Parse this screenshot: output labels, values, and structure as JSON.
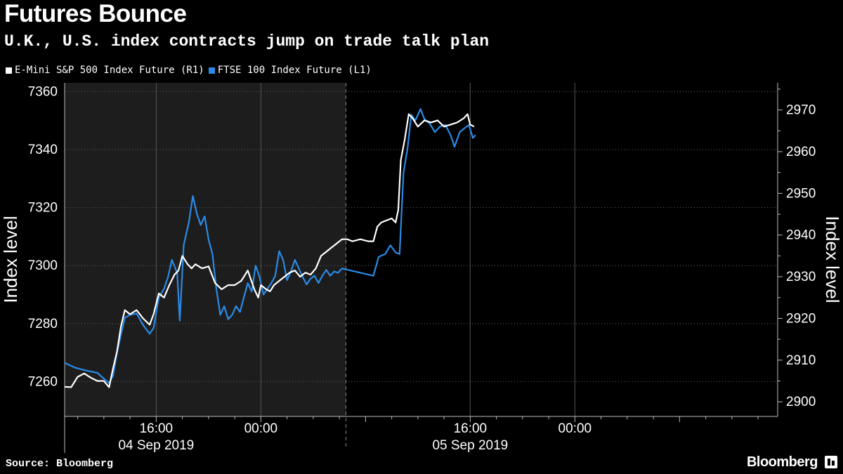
{
  "header": {
    "title": "Futures Bounce",
    "subtitle": "U.K., U.S. index contracts jump on trade talk plan"
  },
  "legend": {
    "items": [
      {
        "label": "E-Mini S&P 500 Index Future  (R1)",
        "color": "#ffffff"
      },
      {
        "label": "FTSE 100 Index Future  (L1)",
        "color": "#2b8ae6"
      }
    ]
  },
  "footer": {
    "source": "Source: Bloomberg",
    "brand": "Bloomberg"
  },
  "chart_data": {
    "type": "line",
    "title": "Futures Bounce",
    "subtitle": "U.K., U.S. index contracts jump on trade talk plan",
    "ylabel_left": "Index level",
    "ylabel_right": "Index level",
    "x_axis": {
      "unit": "hours since 2019-09-04 00:00",
      "range": [
        9,
        63.5
      ],
      "time_ticks": [
        {
          "t": 16,
          "label": "16:00"
        },
        {
          "t": 24,
          "label": "00:00"
        },
        {
          "t": 40,
          "label": "16:00"
        },
        {
          "t": 48,
          "label": "00:00"
        }
      ],
      "date_labels": [
        {
          "t": 16,
          "label": "04 Sep 2019"
        },
        {
          "t": 40,
          "label": "05 Sep 2019"
        }
      ]
    },
    "y_left": {
      "range": [
        7248,
        7363
      ],
      "ticks": [
        7260,
        7280,
        7300,
        7320,
        7340,
        7360
      ]
    },
    "y_right": {
      "range": [
        2896.5,
        2976.5
      ],
      "ticks": [
        2900,
        2910,
        2920,
        2930,
        2940,
        2950,
        2960,
        2970
      ]
    },
    "shaded_region": [
      9,
      30.5
    ],
    "grid": true,
    "series": [
      {
        "name": "E-Mini S&P 500 Index Future  (R1)",
        "axis": "right",
        "color": "#ffffff",
        "points": [
          [
            9.0,
            2903.6
          ],
          [
            9.5,
            2903.5
          ],
          [
            10.0,
            2906.0
          ],
          [
            10.5,
            2906.8
          ],
          [
            11.0,
            2905.8
          ],
          [
            11.5,
            2905.0
          ],
          [
            12.0,
            2905.0
          ],
          [
            12.4,
            2903.5
          ],
          [
            12.7,
            2908.0
          ],
          [
            13.0,
            2912.0
          ],
          [
            13.3,
            2918.0
          ],
          [
            13.6,
            2922.0
          ],
          [
            14.0,
            2921.0
          ],
          [
            14.5,
            2922.0
          ],
          [
            15.0,
            2920.0
          ],
          [
            15.5,
            2918.5
          ],
          [
            15.8,
            2921.0
          ],
          [
            16.2,
            2926.0
          ],
          [
            16.6,
            2925.0
          ],
          [
            17.0,
            2928.0
          ],
          [
            17.4,
            2930.5
          ],
          [
            17.7,
            2931.5
          ],
          [
            18.0,
            2935.0
          ],
          [
            18.4,
            2933.0
          ],
          [
            18.7,
            2932.0
          ],
          [
            19.0,
            2933.0
          ],
          [
            19.5,
            2932.0
          ],
          [
            20.0,
            2932.5
          ],
          [
            20.5,
            2928.5
          ],
          [
            21.0,
            2927.0
          ],
          [
            21.5,
            2928.0
          ],
          [
            22.0,
            2928.0
          ],
          [
            22.5,
            2929.0
          ],
          [
            23.0,
            2931.5
          ],
          [
            23.5,
            2927.0
          ],
          [
            23.8,
            2925.0
          ],
          [
            24.0,
            2928.0
          ],
          [
            24.4,
            2927.0
          ],
          [
            24.7,
            2926.5
          ],
          [
            25.0,
            2928.0
          ],
          [
            25.4,
            2929.0
          ],
          [
            25.8,
            2930.0
          ],
          [
            26.2,
            2931.0
          ],
          [
            26.6,
            2931.5
          ],
          [
            27.0,
            2930.0
          ],
          [
            27.4,
            2931.0
          ],
          [
            27.8,
            2930.5
          ],
          [
            28.2,
            2932.0
          ],
          [
            28.6,
            2935.0
          ],
          [
            29.0,
            2936.0
          ],
          [
            29.4,
            2937.0
          ],
          [
            29.8,
            2938.0
          ],
          [
            30.2,
            2939.0
          ],
          [
            30.6,
            2939.0
          ],
          [
            31.0,
            2938.5
          ],
          [
            31.6,
            2939.0
          ],
          [
            32.2,
            2938.5
          ],
          [
            32.6,
            2938.5
          ],
          [
            32.9,
            2942.0
          ],
          [
            33.2,
            2943.0
          ],
          [
            33.6,
            2943.5
          ],
          [
            34.0,
            2944.0
          ],
          [
            34.3,
            2943.0
          ],
          [
            34.5,
            2946.0
          ],
          [
            34.7,
            2958.0
          ],
          [
            35.0,
            2963.0
          ],
          [
            35.3,
            2969.0
          ],
          [
            35.6,
            2968.0
          ],
          [
            36.0,
            2966.0
          ],
          [
            36.5,
            2967.5
          ],
          [
            37.0,
            2967.0
          ],
          [
            37.5,
            2967.5
          ],
          [
            38.0,
            2966.0
          ],
          [
            38.5,
            2966.5
          ],
          [
            39.0,
            2967.0
          ],
          [
            39.5,
            2968.0
          ],
          [
            39.8,
            2969.0
          ],
          [
            40.0,
            2966.5
          ],
          [
            40.3,
            2966.0
          ]
        ]
      },
      {
        "name": "FTSE 100 Index Future  (L1)",
        "axis": "left",
        "color": "#2b8ae6",
        "points": [
          [
            9.0,
            7266.5
          ],
          [
            9.8,
            7264.8
          ],
          [
            10.5,
            7264.0
          ],
          [
            11.0,
            7263.5
          ],
          [
            11.5,
            7263.0
          ],
          [
            12.0,
            7261.0
          ],
          [
            12.4,
            7259.5
          ],
          [
            12.7,
            7262.0
          ],
          [
            13.0,
            7270.0
          ],
          [
            13.3,
            7276.0
          ],
          [
            13.6,
            7282.0
          ],
          [
            14.0,
            7283.0
          ],
          [
            14.5,
            7283.5
          ],
          [
            15.0,
            7279.5
          ],
          [
            15.5,
            7276.5
          ],
          [
            15.8,
            7278.5
          ],
          [
            16.2,
            7289.0
          ],
          [
            16.6,
            7292.0
          ],
          [
            16.9,
            7296.0
          ],
          [
            17.2,
            7302.0
          ],
          [
            17.6,
            7297.5
          ],
          [
            17.8,
            7281.0
          ],
          [
            18.1,
            7307.0
          ],
          [
            18.5,
            7315.0
          ],
          [
            18.8,
            7324.0
          ],
          [
            19.1,
            7318.0
          ],
          [
            19.4,
            7314.0
          ],
          [
            19.7,
            7317.0
          ],
          [
            20.0,
            7309.0
          ],
          [
            20.3,
            7304.0
          ],
          [
            20.6,
            7292.0
          ],
          [
            20.9,
            7283.0
          ],
          [
            21.2,
            7286.0
          ],
          [
            21.5,
            7281.5
          ],
          [
            21.8,
            7283.0
          ],
          [
            22.1,
            7286.0
          ],
          [
            22.4,
            7284.0
          ],
          [
            22.7,
            7289.0
          ],
          [
            23.0,
            7294.0
          ],
          [
            23.3,
            7291.0
          ],
          [
            23.6,
            7300.0
          ],
          [
            23.9,
            7296.0
          ],
          [
            24.2,
            7290.0
          ],
          [
            24.5,
            7292.0
          ],
          [
            24.8,
            7294.0
          ],
          [
            25.1,
            7296.5
          ],
          [
            25.4,
            7305.0
          ],
          [
            25.7,
            7302.0
          ],
          [
            26.0,
            7295.0
          ],
          [
            26.3,
            7298.0
          ],
          [
            26.6,
            7302.0
          ],
          [
            26.9,
            7299.0
          ],
          [
            27.2,
            7296.0
          ],
          [
            27.5,
            7293.5
          ],
          [
            27.8,
            7295.5
          ],
          [
            28.1,
            7296.5
          ],
          [
            28.4,
            7294.0
          ],
          [
            28.7,
            7296.5
          ],
          [
            29.0,
            7298.5
          ],
          [
            29.3,
            7296.5
          ],
          [
            29.6,
            7298.0
          ],
          [
            29.9,
            7297.5
          ],
          [
            30.2,
            7299.0
          ],
          [
            32.6,
            7296.5
          ],
          [
            33.0,
            7303.0
          ],
          [
            33.5,
            7304.0
          ],
          [
            33.9,
            7307.0
          ],
          [
            34.3,
            7304.5
          ],
          [
            34.6,
            7304.0
          ],
          [
            34.9,
            7332.0
          ],
          [
            35.2,
            7340.0
          ],
          [
            35.5,
            7352.0
          ],
          [
            35.8,
            7350.0
          ],
          [
            36.2,
            7354.0
          ],
          [
            36.5,
            7350.5
          ],
          [
            36.9,
            7349.0
          ],
          [
            37.3,
            7346.0
          ],
          [
            37.7,
            7348.0
          ],
          [
            38.1,
            7348.5
          ],
          [
            38.5,
            7345.0
          ],
          [
            38.8,
            7341.0
          ],
          [
            39.2,
            7346.0
          ],
          [
            39.6,
            7347.5
          ],
          [
            39.9,
            7348.5
          ],
          [
            40.2,
            7344.0
          ],
          [
            40.4,
            7345.0
          ]
        ]
      }
    ]
  }
}
